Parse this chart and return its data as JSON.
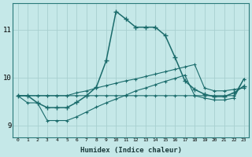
{
  "xlabel": "Humidex (Indice chaleur)",
  "background_color": "#c5e8e8",
  "grid_color": "#a8d0d0",
  "line_color": "#1a6b6b",
  "xlim": [
    -0.5,
    23.5
  ],
  "ylim": [
    8.75,
    11.55
  ],
  "yticks": [
    9,
    10,
    11
  ],
  "xticks": [
    0,
    1,
    2,
    3,
    4,
    5,
    6,
    7,
    8,
    9,
    10,
    11,
    12,
    13,
    14,
    15,
    16,
    17,
    18,
    19,
    20,
    21,
    22,
    23
  ],
  "line1_x": [
    0,
    1,
    2,
    3,
    4,
    5,
    6,
    7,
    8,
    9,
    10,
    11,
    12,
    13,
    14,
    15,
    16,
    17,
    18,
    19,
    20,
    21,
    22,
    23
  ],
  "line1_y": [
    9.62,
    9.62,
    9.62,
    9.62,
    9.62,
    9.62,
    9.62,
    9.62,
    9.62,
    9.62,
    9.62,
    9.62,
    9.62,
    9.62,
    9.62,
    9.62,
    9.62,
    9.62,
    9.62,
    9.62,
    9.62,
    9.62,
    9.62,
    9.97
  ],
  "line2_x": [
    0,
    1,
    2,
    3,
    4,
    5,
    6,
    7,
    8,
    9,
    10,
    11,
    12,
    13,
    14,
    15,
    16,
    17,
    18,
    19,
    20,
    21,
    22,
    23
  ],
  "line2_y": [
    9.62,
    9.62,
    9.62,
    9.62,
    9.62,
    9.62,
    9.68,
    9.72,
    9.78,
    9.83,
    9.88,
    9.93,
    9.97,
    10.02,
    10.07,
    10.12,
    10.17,
    10.22,
    10.27,
    9.78,
    9.72,
    9.72,
    9.75,
    9.78
  ],
  "line3_x": [
    0,
    1,
    2,
    3,
    4,
    5,
    6,
    7,
    8,
    9,
    10,
    11,
    12,
    13,
    14,
    15,
    16,
    17,
    18,
    19,
    20,
    21,
    22,
    23
  ],
  "line3_y": [
    9.62,
    9.47,
    9.47,
    9.1,
    9.1,
    9.1,
    9.18,
    9.28,
    9.38,
    9.47,
    9.55,
    9.63,
    9.72,
    9.78,
    9.85,
    9.92,
    9.98,
    10.05,
    9.62,
    9.57,
    9.53,
    9.53,
    9.57,
    9.97
  ],
  "line4_x": [
    0,
    1,
    2,
    3,
    4,
    5,
    6,
    7,
    8,
    9,
    10,
    11,
    12,
    13,
    14,
    15,
    16,
    17,
    18,
    19,
    20,
    21,
    22,
    23
  ],
  "line4_y": [
    9.62,
    9.62,
    9.47,
    9.37,
    9.37,
    9.37,
    9.48,
    9.62,
    9.8,
    10.35,
    11.38,
    11.22,
    11.05,
    11.05,
    11.05,
    10.88,
    10.42,
    9.93,
    9.75,
    9.65,
    9.6,
    9.6,
    9.68,
    9.82
  ]
}
